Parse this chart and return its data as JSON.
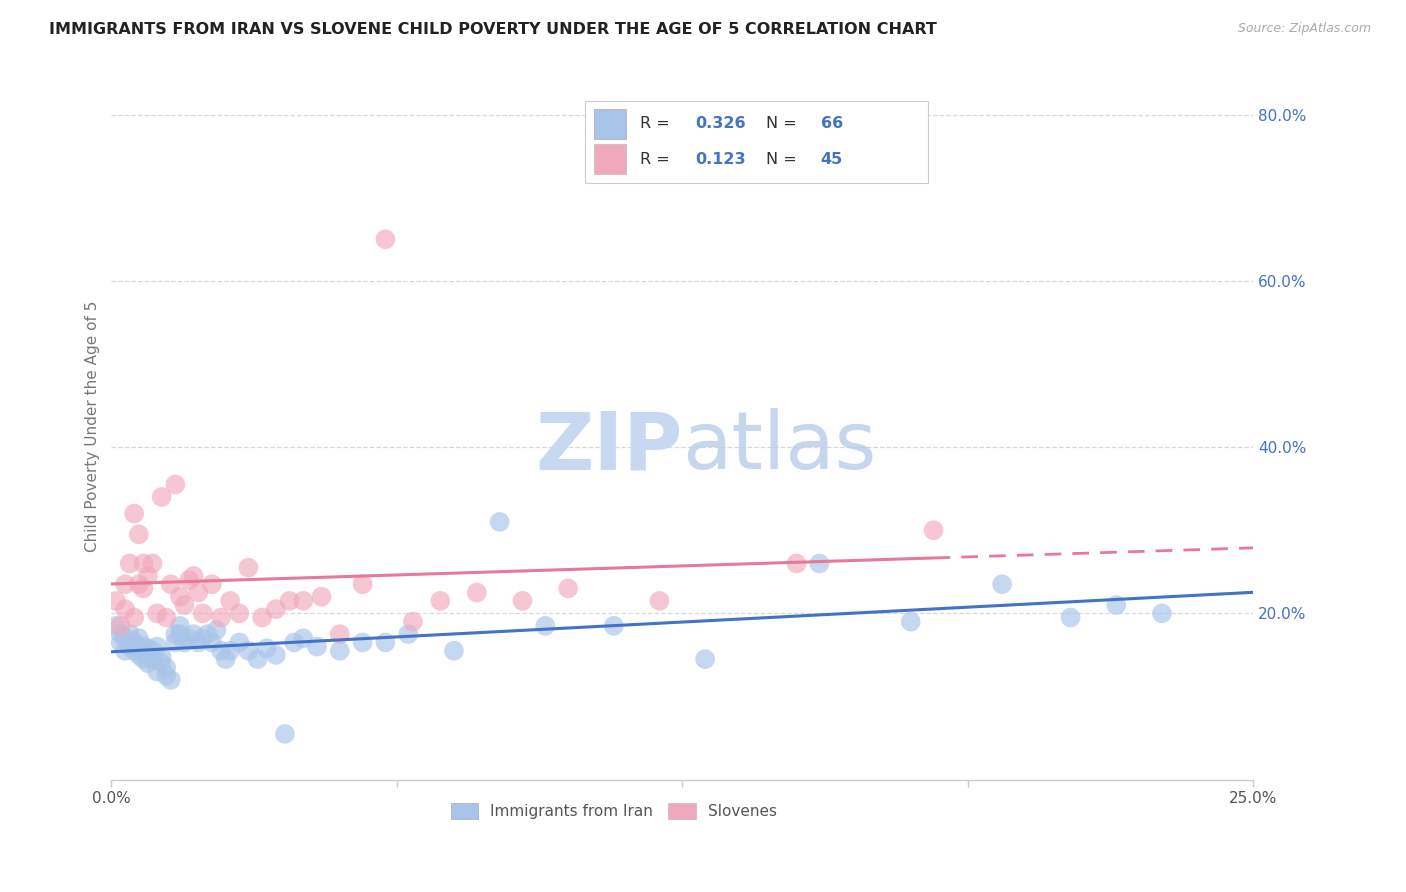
{
  "title": "IMMIGRANTS FROM IRAN VS SLOVENE CHILD POVERTY UNDER THE AGE OF 5 CORRELATION CHART",
  "source": "Source: ZipAtlas.com",
  "ylabel": "Child Poverty Under the Age of 5",
  "yticks_right": [
    "80.0%",
    "60.0%",
    "40.0%",
    "20.0%"
  ],
  "yticks_right_vals": [
    0.8,
    0.6,
    0.4,
    0.2
  ],
  "legend_label1": "Immigrants from Iran",
  "legend_label2": "Slovenes",
  "R1": "0.326",
  "N1": "66",
  "R2": "0.123",
  "N2": "45",
  "color_blue": "#a8c4e8",
  "color_pink": "#f0a8bc",
  "color_blue_text": "#4472c4",
  "line_blue": "#4472c4",
  "line_pink": "#e87898",
  "background": "#ffffff",
  "grid_color": "#d8d8d8",
  "iran_x": [
    0.001,
    0.002,
    0.002,
    0.003,
    0.003,
    0.004,
    0.004,
    0.005,
    0.005,
    0.006,
    0.006,
    0.006,
    0.007,
    0.007,
    0.007,
    0.008,
    0.008,
    0.008,
    0.009,
    0.009,
    0.01,
    0.01,
    0.011,
    0.011,
    0.012,
    0.012,
    0.013,
    0.014,
    0.014,
    0.015,
    0.015,
    0.016,
    0.017,
    0.018,
    0.019,
    0.02,
    0.021,
    0.022,
    0.023,
    0.024,
    0.025,
    0.026,
    0.028,
    0.03,
    0.032,
    0.034,
    0.036,
    0.038,
    0.04,
    0.042,
    0.045,
    0.05,
    0.055,
    0.06,
    0.065,
    0.075,
    0.085,
    0.095,
    0.11,
    0.13,
    0.155,
    0.175,
    0.195,
    0.21,
    0.22,
    0.23
  ],
  "iran_y": [
    0.185,
    0.165,
    0.175,
    0.155,
    0.17,
    0.16,
    0.175,
    0.165,
    0.155,
    0.17,
    0.15,
    0.16,
    0.145,
    0.155,
    0.16,
    0.14,
    0.15,
    0.158,
    0.145,
    0.155,
    0.16,
    0.13,
    0.14,
    0.148,
    0.125,
    0.135,
    0.12,
    0.165,
    0.175,
    0.185,
    0.175,
    0.165,
    0.17,
    0.175,
    0.165,
    0.17,
    0.175,
    0.165,
    0.18,
    0.155,
    0.145,
    0.155,
    0.165,
    0.155,
    0.145,
    0.158,
    0.15,
    0.055,
    0.165,
    0.17,
    0.16,
    0.155,
    0.165,
    0.165,
    0.175,
    0.155,
    0.31,
    0.185,
    0.185,
    0.145,
    0.26,
    0.19,
    0.235,
    0.195,
    0.21,
    0.2
  ],
  "slovene_x": [
    0.001,
    0.002,
    0.003,
    0.003,
    0.004,
    0.005,
    0.005,
    0.006,
    0.006,
    0.007,
    0.007,
    0.008,
    0.009,
    0.01,
    0.011,
    0.012,
    0.013,
    0.014,
    0.015,
    0.016,
    0.017,
    0.018,
    0.019,
    0.02,
    0.022,
    0.024,
    0.026,
    0.028,
    0.03,
    0.033,
    0.036,
    0.039,
    0.042,
    0.046,
    0.05,
    0.055,
    0.06,
    0.066,
    0.072,
    0.08,
    0.09,
    0.1,
    0.12,
    0.15,
    0.18
  ],
  "slovene_y": [
    0.215,
    0.185,
    0.235,
    0.205,
    0.26,
    0.195,
    0.32,
    0.295,
    0.235,
    0.26,
    0.23,
    0.245,
    0.26,
    0.2,
    0.34,
    0.195,
    0.235,
    0.355,
    0.22,
    0.21,
    0.24,
    0.245,
    0.225,
    0.2,
    0.235,
    0.195,
    0.215,
    0.2,
    0.255,
    0.195,
    0.205,
    0.215,
    0.215,
    0.22,
    0.175,
    0.235,
    0.65,
    0.19,
    0.215,
    0.225,
    0.215,
    0.23,
    0.215,
    0.26,
    0.3
  ]
}
